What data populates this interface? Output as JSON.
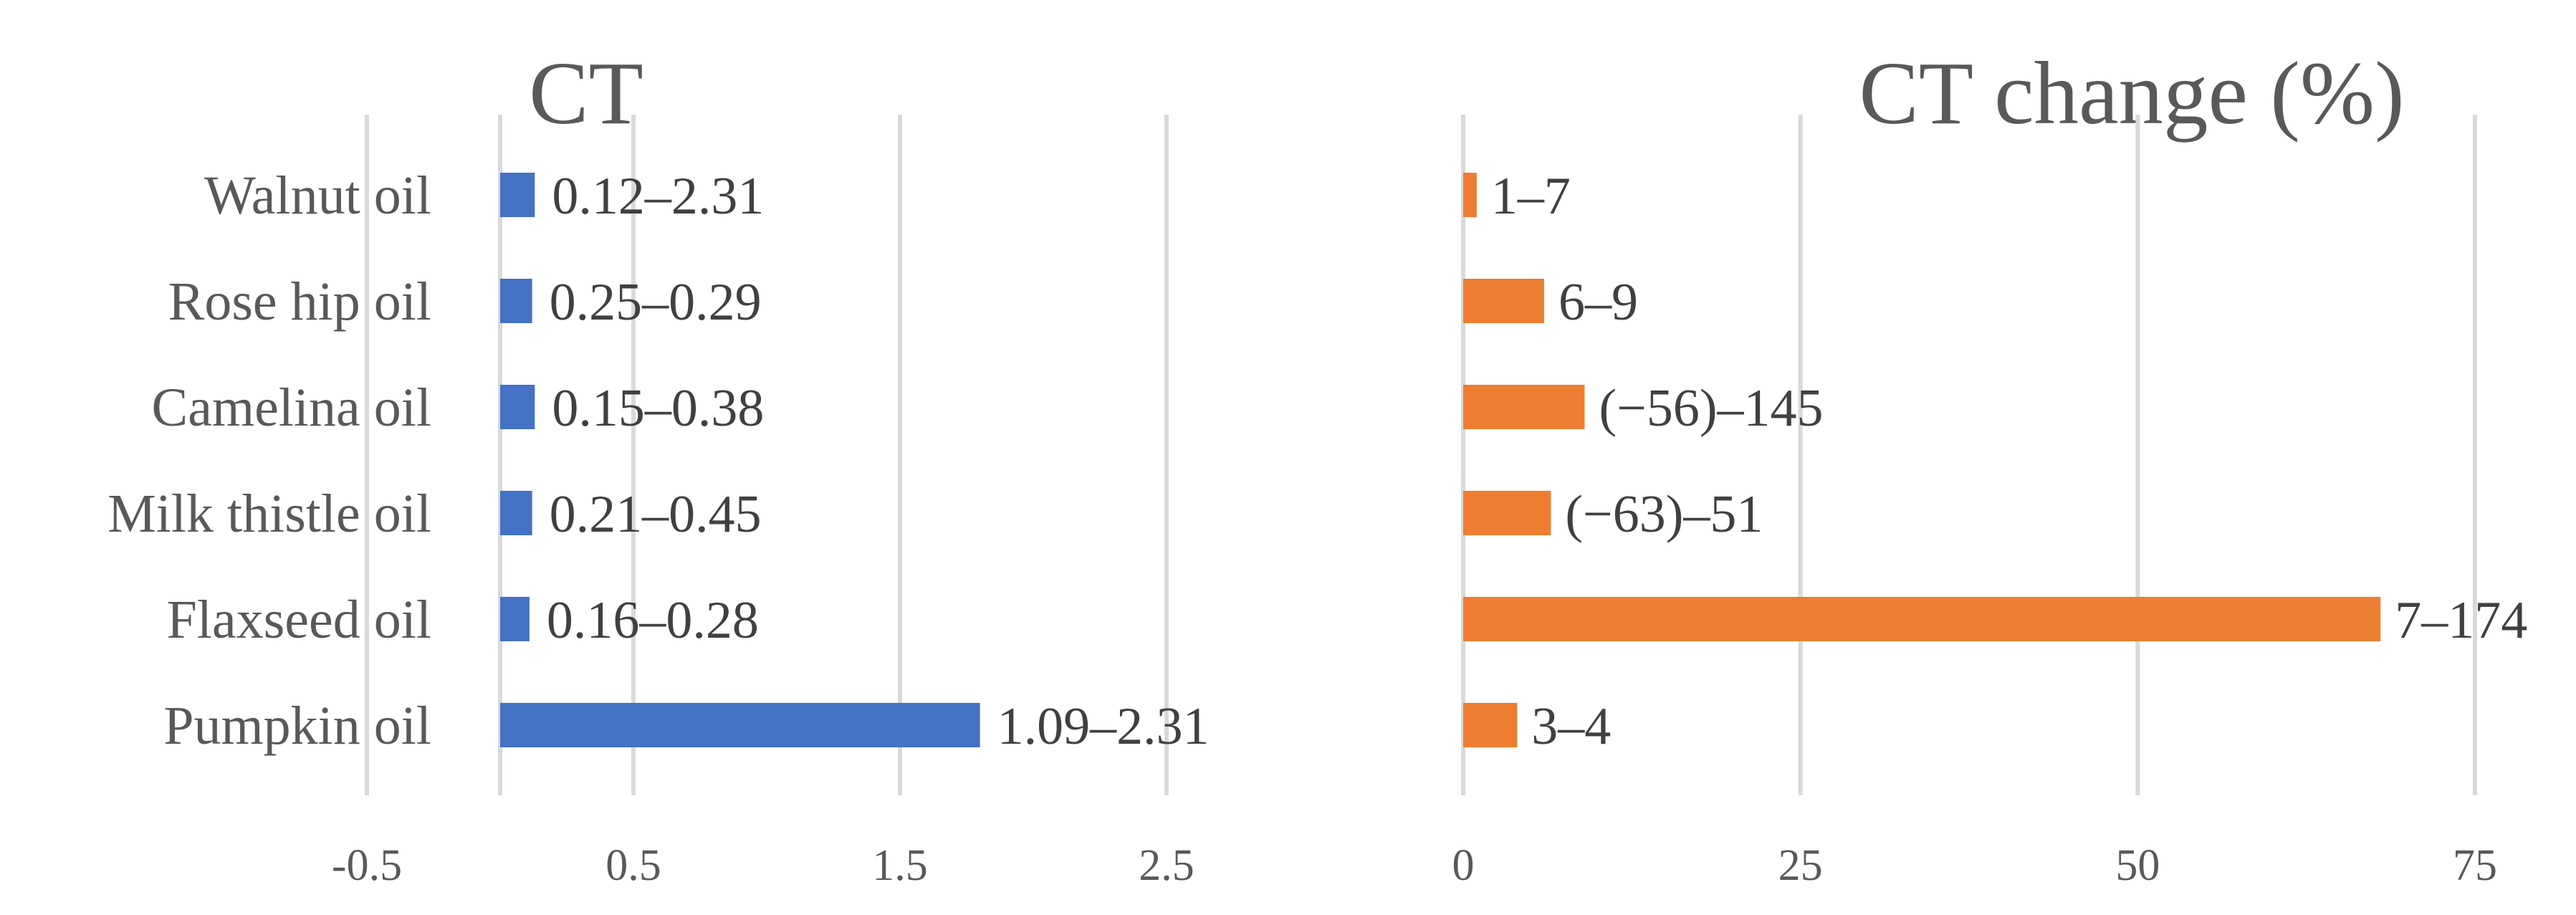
{
  "chart_data": [
    {
      "type": "bar",
      "orientation": "horizontal",
      "title": "CT",
      "categories": [
        "Walnut oil",
        "Rose hip oil",
        "Camelina oil",
        "Milk thistle oil",
        "Flaxseed oil",
        "Pumpkin oil"
      ],
      "values": [
        0.13,
        0.12,
        0.13,
        0.12,
        0.11,
        1.8
      ],
      "data_labels": [
        "0.12–2.31",
        "0.25–0.29",
        "0.15–0.38",
        "0.21–0.45",
        "0.16–0.28",
        "1.09–2.31"
      ],
      "xlim": [
        -0.5,
        2.5
      ],
      "xticks": [
        "-0.5",
        "0.5",
        "1.5",
        "2.5"
      ],
      "grid": true,
      "color": "#4472c4"
    },
    {
      "type": "bar",
      "orientation": "horizontal",
      "title": "CT change (%)",
      "categories": [
        "Walnut oil",
        "Rose hip oil",
        "Camelina oil",
        "Milk thistle oil",
        "Flaxseed oil",
        "Pumpkin oil"
      ],
      "values": [
        1,
        6,
        9,
        6.5,
        68,
        4
      ],
      "data_labels": [
        "1–7",
        "6–9",
        "(−56)–145",
        "(−63)–51",
        "7–174",
        "3–4"
      ],
      "xlim": [
        0,
        75
      ],
      "xticks": [
        "0",
        "25",
        "50",
        "75"
      ],
      "grid": true,
      "color": "#ed7d31"
    }
  ]
}
